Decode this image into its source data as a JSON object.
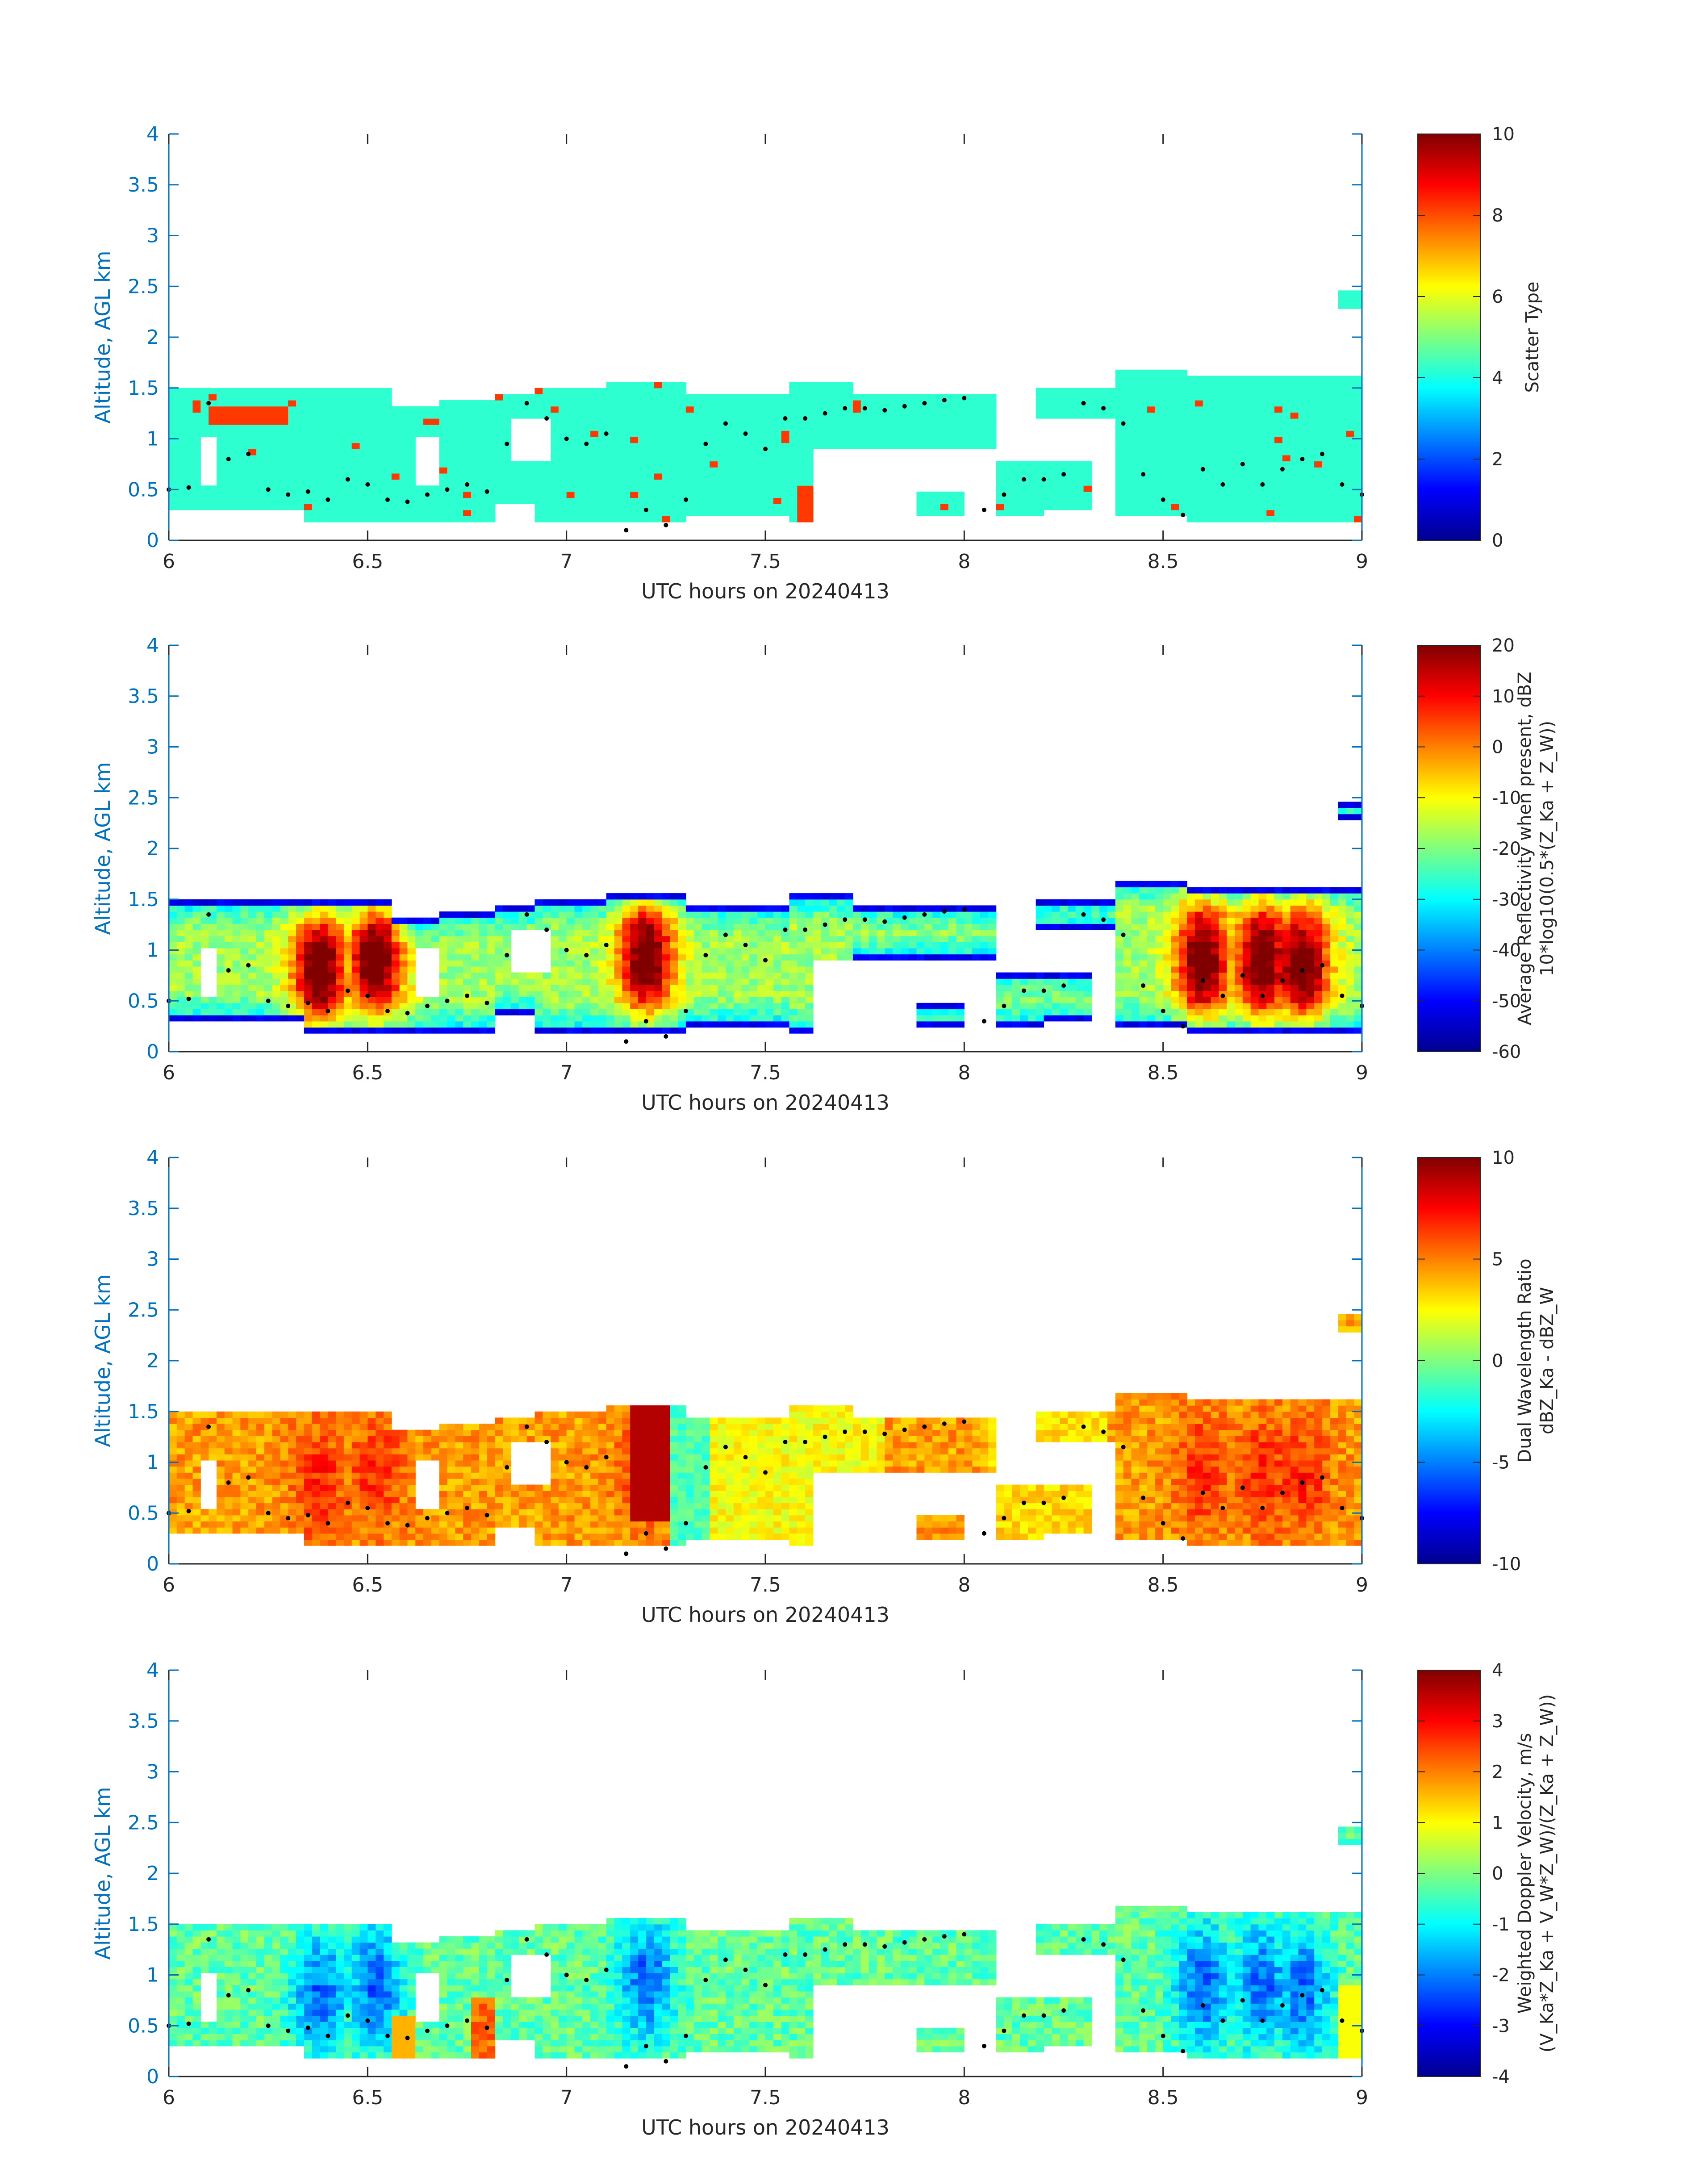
{
  "chart_data": [
    {
      "type": "heatmap",
      "id": "scatter-type",
      "xlabel": "UTC hours on 20240413",
      "ylabel": "Altitude, AGL km",
      "xlim": [
        6,
        9
      ],
      "ylim": [
        0,
        4
      ],
      "xticks": [
        "6",
        "6.5",
        "7",
        "7.5",
        "8",
        "8.5",
        "9"
      ],
      "yticks": [
        "0",
        "0.5",
        "1",
        "1.5",
        "2",
        "2.5",
        "3",
        "3.5",
        "4"
      ],
      "colorbar": {
        "label_lines": [
          "Scatter Type"
        ],
        "range": [
          0,
          10
        ],
        "ticks": [
          "0",
          "2",
          "4",
          "6",
          "8",
          "10"
        ],
        "colormap": "jet"
      },
      "grid": false,
      "scatter_type_dominant": 4,
      "scatter_type_secondary": 8
    },
    {
      "type": "heatmap",
      "id": "reflectivity",
      "xlabel": "UTC hours on 20240413",
      "ylabel": "Altitude, AGL km",
      "xlim": [
        6,
        9
      ],
      "ylim": [
        0,
        4
      ],
      "xticks": [
        "6",
        "6.5",
        "7",
        "7.5",
        "8",
        "8.5",
        "9"
      ],
      "yticks": [
        "0",
        "0.5",
        "1",
        "1.5",
        "2",
        "2.5",
        "3",
        "3.5",
        "4"
      ],
      "colorbar": {
        "label_lines": [
          "Average Reflectivity when present, dBZ",
          "10*log10(0.5*(Z_Ka + Z_W))"
        ],
        "range": [
          -60,
          20
        ],
        "ticks": [
          "-60",
          "-50",
          "-40",
          "-30",
          "-20",
          "-10",
          "0",
          "10",
          "20"
        ],
        "colormap": "jet"
      },
      "grid": false
    },
    {
      "type": "heatmap",
      "id": "dual-wavelength-ratio",
      "xlabel": "UTC hours on 20240413",
      "ylabel": "Altitude, AGL km",
      "xlim": [
        6,
        9
      ],
      "ylim": [
        0,
        4
      ],
      "xticks": [
        "6",
        "6.5",
        "7",
        "7.5",
        "8",
        "8.5",
        "9"
      ],
      "yticks": [
        "0",
        "0.5",
        "1",
        "1.5",
        "2",
        "2.5",
        "3",
        "3.5",
        "4"
      ],
      "colorbar": {
        "label_lines": [
          "Dual Wavelength Ratio",
          "dBZ_Ka - dBZ_W"
        ],
        "range": [
          -10,
          10
        ],
        "ticks": [
          "-10",
          "-5",
          "0",
          "5",
          "10"
        ],
        "colormap": "jet"
      },
      "grid": false
    },
    {
      "type": "heatmap",
      "id": "doppler-velocity",
      "xlabel": "UTC hours on 20240413",
      "ylabel": "Altitude, AGL km",
      "xlim": [
        6,
        9
      ],
      "ylim": [
        0,
        4
      ],
      "xticks": [
        "6",
        "6.5",
        "7",
        "7.5",
        "8",
        "8.5",
        "9"
      ],
      "yticks": [
        "0",
        "0.5",
        "1",
        "1.5",
        "2",
        "2.5",
        "3",
        "3.5",
        "4"
      ],
      "colorbar": {
        "label_lines": [
          "Weighted Doppler Velocity, m/s",
          "(V_Ka*Z_Ka + V_W*Z_W)/(Z_Ka + Z_W))"
        ],
        "range": [
          -4,
          4
        ],
        "ticks": [
          "-4",
          "-3",
          "-2",
          "-1",
          "0",
          "1",
          "2",
          "3",
          "4"
        ],
        "colormap": "jet"
      },
      "grid": false
    }
  ],
  "cloud_mask": {
    "description_units": "time segments [t_start_hours, t_end_hours, base_km, top_km]",
    "segments": [
      [
        6.0,
        6.33,
        0.28,
        1.5
      ],
      [
        6.33,
        6.55,
        0.2,
        1.5
      ],
      [
        6.55,
        6.68,
        0.2,
        1.3
      ],
      [
        6.68,
        6.82,
        0.2,
        1.4
      ],
      [
        6.82,
        6.92,
        0.35,
        1.45
      ],
      [
        6.92,
        7.1,
        0.2,
        1.5
      ],
      [
        7.1,
        7.3,
        0.2,
        1.55
      ],
      [
        7.3,
        7.55,
        0.25,
        1.45
      ],
      [
        7.55,
        7.72,
        0.2,
        1.55
      ],
      [
        7.72,
        8.07,
        0.9,
        1.45
      ],
      [
        7.88,
        8.0,
        0.25,
        0.45
      ],
      [
        8.07,
        8.2,
        0.25,
        0.8
      ],
      [
        8.2,
        8.32,
        0.3,
        0.8
      ],
      [
        8.18,
        8.38,
        1.2,
        1.5
      ],
      [
        8.38,
        8.55,
        0.25,
        1.7
      ],
      [
        8.55,
        9.0,
        0.2,
        1.65
      ],
      [
        8.94,
        9.0,
        2.28,
        2.48
      ]
    ],
    "gaps": [
      [
        6.08,
        6.12,
        0.55,
        1.05
      ],
      [
        6.62,
        6.68,
        0.55,
        1.05
      ],
      [
        6.86,
        6.96,
        0.8,
        1.2
      ],
      [
        7.62,
        7.72,
        0.2,
        0.9
      ]
    ]
  },
  "trace": {
    "description": "black dotted layer-height trace (km)",
    "x": [
      6.0,
      6.05,
      6.1,
      6.15,
      6.2,
      6.25,
      6.3,
      6.35,
      6.4,
      6.45,
      6.5,
      6.55,
      6.6,
      6.65,
      6.7,
      6.75,
      6.8,
      6.85,
      6.9,
      6.95,
      7.0,
      7.05,
      7.1,
      7.15,
      7.2,
      7.25,
      7.3,
      7.35,
      7.4,
      7.45,
      7.5,
      7.55,
      7.6,
      7.65,
      7.7,
      7.75,
      7.8,
      7.85,
      7.9,
      7.95,
      8.0,
      8.05,
      8.1,
      8.15,
      8.2,
      8.25,
      8.3,
      8.35,
      8.4,
      8.45,
      8.5,
      8.55,
      8.6,
      8.65,
      8.7,
      8.75,
      8.8,
      8.85,
      8.9,
      8.95,
      9.0
    ],
    "y": [
      0.5,
      0.52,
      1.35,
      0.8,
      0.85,
      0.5,
      0.45,
      0.48,
      0.4,
      0.6,
      0.55,
      0.4,
      0.38,
      0.45,
      0.5,
      0.55,
      0.48,
      0.95,
      1.35,
      1.2,
      1.0,
      0.95,
      1.05,
      0.1,
      0.3,
      0.15,
      0.4,
      0.95,
      1.15,
      1.05,
      0.9,
      1.2,
      1.2,
      1.25,
      1.3,
      1.3,
      1.28,
      1.32,
      1.35,
      1.38,
      1.4,
      0.3,
      0.45,
      0.6,
      0.6,
      0.65,
      1.35,
      1.3,
      1.15,
      0.65,
      0.4,
      0.25,
      0.7,
      0.55,
      0.75,
      0.55,
      0.7,
      0.8,
      0.85,
      0.55,
      0.45
    ]
  }
}
